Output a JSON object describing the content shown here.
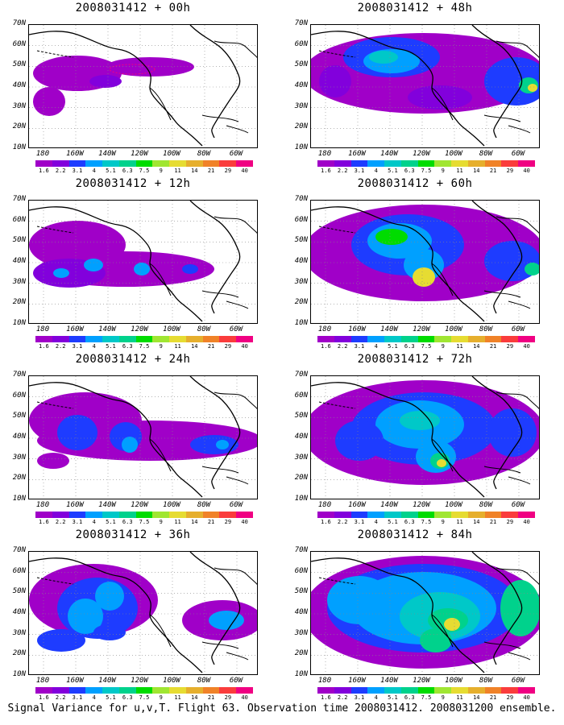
{
  "panels": [
    {
      "title": "2008031412 + 00h",
      "level": 0
    },
    {
      "title": "2008031412 + 48h",
      "level": 4
    },
    {
      "title": "2008031412 + 12h",
      "level": 1
    },
    {
      "title": "2008031412 + 60h",
      "level": 5
    },
    {
      "title": "2008031412 + 24h",
      "level": 2
    },
    {
      "title": "2008031412 + 72h",
      "level": 6
    },
    {
      "title": "2008031412 + 36h",
      "level": 3
    },
    {
      "title": "2008031412 + 84h",
      "level": 7
    }
  ],
  "axes": {
    "lat_labels": [
      "70N",
      "60N",
      "50N",
      "40N",
      "30N",
      "20N",
      "10N"
    ],
    "lon_labels": [
      "180",
      "160W",
      "140W",
      "120W",
      "100W",
      "80W",
      "60W"
    ]
  },
  "colorbar": {
    "labels": [
      "1.6",
      "2.2",
      "3.1",
      "4",
      "5.1",
      "6.3",
      "7.5",
      "9",
      "11",
      "14",
      "21",
      "29",
      "40"
    ],
    "colors": [
      "#a000c8",
      "#8200dc",
      "#1e3cff",
      "#00a0ff",
      "#00c8c8",
      "#00d28c",
      "#00dc00",
      "#a0e632",
      "#e6dc32",
      "#e6af2d",
      "#f08228",
      "#fa3c3c",
      "#f00082"
    ]
  },
  "caption": "Signal Variance for u,v,T. Flight 63. Observation time 2008031412. 2008031200 ensemble."
}
